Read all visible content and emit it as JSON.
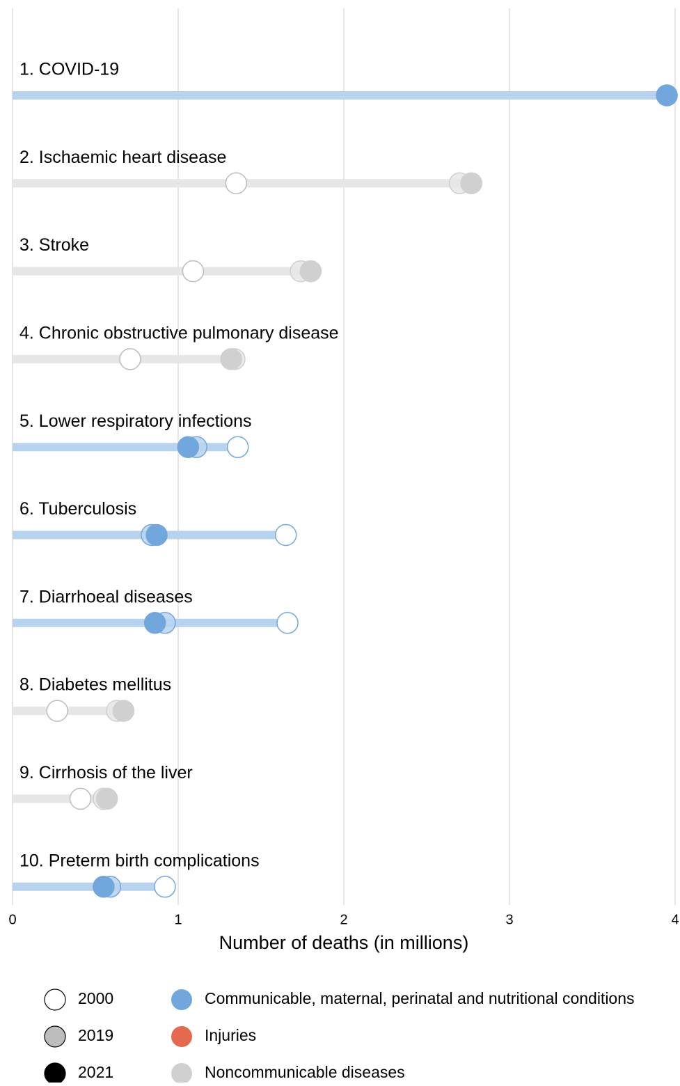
{
  "chart_data": {
    "type": "dumbbell",
    "x_label": "Number of deaths (in millions)",
    "xlim": [
      0,
      4
    ],
    "xticks": [
      0,
      1,
      2,
      3,
      4
    ],
    "grid": true,
    "categories": [
      "1. COVID-19",
      "2. Ischaemic heart disease",
      "3. Stroke",
      "4. Chronic obstructive pulmonary disease",
      "5. Lower respiratory infections",
      "6. Tuberculosis",
      "7. Diarrhoeal diseases",
      "8. Diabetes mellitus",
      "9. Cirrhosis of the liver",
      "10. Preterm birth complications"
    ],
    "category_group": [
      0,
      2,
      2,
      2,
      0,
      0,
      0,
      2,
      2,
      0
    ],
    "groups": [
      {
        "name": "Communicable, maternal, perinatal and nutritional conditions",
        "color": "#72a7de",
        "light": "#b8d3ee"
      },
      {
        "name": "Injuries",
        "color": "#e4694f",
        "light": "#f3b9ac"
      },
      {
        "name": "Noncommunicable diseases",
        "color": "#d0d0d0",
        "light": "#e6e6e6"
      }
    ],
    "series": [
      {
        "name": "2000",
        "color": "#ffffff",
        "values": [
          null,
          1.35,
          1.09,
          0.71,
          1.36,
          1.65,
          1.66,
          0.27,
          0.41,
          0.92
        ]
      },
      {
        "name": "2019",
        "color": "#bdbdbd",
        "values": [
          null,
          2.7,
          1.74,
          1.34,
          1.11,
          0.84,
          0.92,
          0.63,
          0.55,
          0.59
        ]
      },
      {
        "name": "2021",
        "color": "#000000",
        "values": [
          3.95,
          2.77,
          1.8,
          1.32,
          1.06,
          0.87,
          0.86,
          0.67,
          0.57,
          0.55
        ]
      }
    ]
  }
}
